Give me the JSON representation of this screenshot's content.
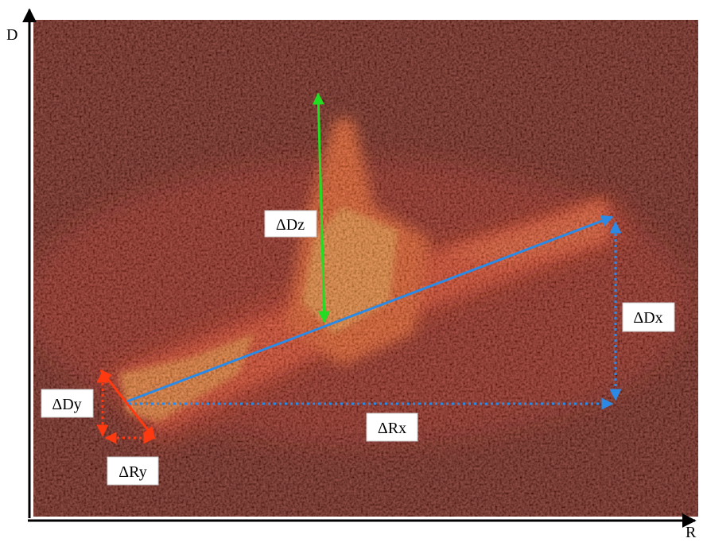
{
  "axes": {
    "y_label": "D",
    "x_label": "R"
  },
  "annotations": {
    "delta_dz": "ΔDz",
    "delta_dx": "ΔDx",
    "delta_rx": "ΔRx",
    "delta_dy": "ΔDy",
    "delta_ry": "ΔRy"
  }
}
